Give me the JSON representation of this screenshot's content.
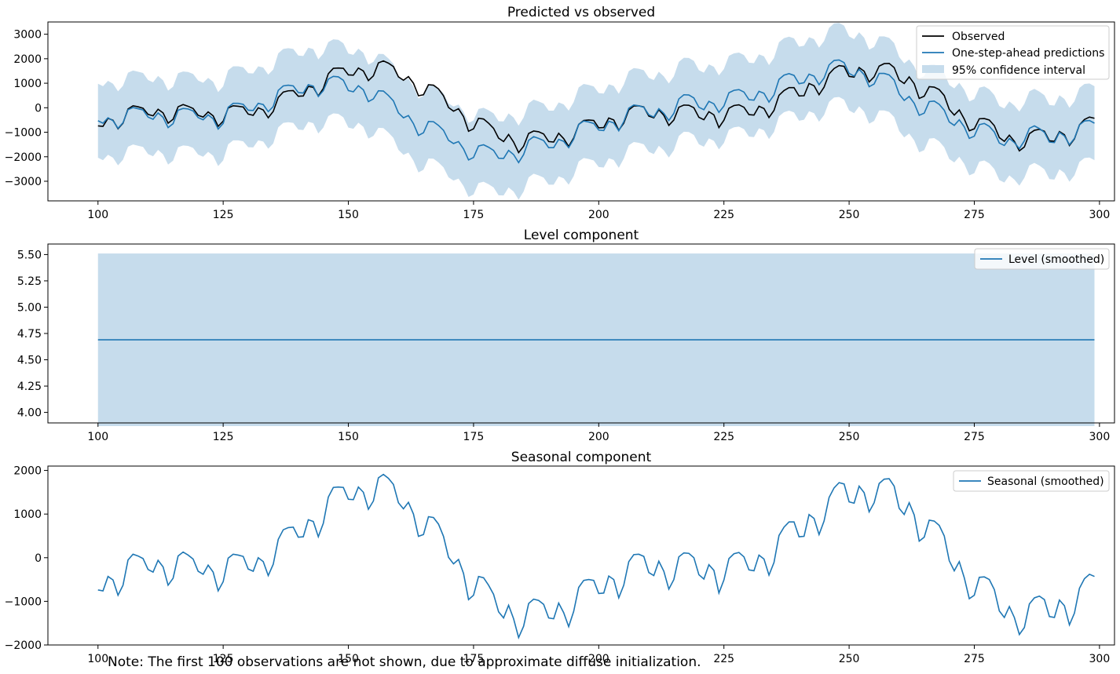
{
  "colors": {
    "series_blue": "#1f77b4",
    "observed": "#000000",
    "ci_fill": "#c6dcec"
  },
  "note": "Note: The first 100 observations are not shown, due to approximate diffuse initialization.",
  "chart_data": [
    {
      "type": "line",
      "title": "Predicted vs observed",
      "xlim": [
        90,
        303
      ],
      "ylim": [
        -3800,
        3500
      ],
      "xticks": [
        100,
        125,
        150,
        175,
        200,
        225,
        250,
        275,
        300
      ],
      "yticks": [
        -3000,
        -2000,
        -1000,
        0,
        1000,
        2000,
        3000
      ],
      "legend_position": "top-right",
      "x_start": 100,
      "x_end": 299,
      "legend": {
        "observed": "Observed",
        "predicted": "One-step-ahead predictions",
        "ci": "95% confidence interval"
      },
      "observed_values": [
        -740,
        -760,
        -430,
        -510,
        -860,
        -630,
        -50,
        80,
        40,
        -20,
        -270,
        -330,
        -60,
        -210,
        -630,
        -470,
        40,
        130,
        60,
        -30,
        -310,
        -380,
        -170,
        -330,
        -760,
        -550,
        -10,
        80,
        60,
        30,
        -260,
        -310,
        0,
        -90,
        -410,
        -150,
        420,
        640,
        690,
        700,
        470,
        480,
        870,
        830,
        480,
        790,
        1390,
        1610,
        1620,
        1610,
        1340,
        1330,
        1620,
        1500,
        1110,
        1300,
        1830,
        1910,
        1820,
        1680,
        1260,
        1120,
        1270,
        1000,
        490,
        530,
        940,
        920,
        770,
        490,
        10,
        -140,
        -40,
        -360,
        -960,
        -860,
        -430,
        -460,
        -630,
        -840,
        -1240,
        -1380,
        -1090,
        -1400,
        -1830,
        -1570,
        -1050,
        -950,
        -980,
        -1070,
        -1380,
        -1400,
        -1040,
        -1260,
        -1580,
        -1230,
        -680,
        -520,
        -500,
        -520,
        -820,
        -810,
        -420,
        -500,
        -920,
        -630,
        -90,
        70,
        80,
        30,
        -340,
        -410,
        -80,
        -310,
        -720,
        -500,
        20,
        110,
        100,
        0,
        -390,
        -490,
        -160,
        -290,
        -810,
        -510,
        -20,
        90,
        120,
        20,
        -280,
        -300,
        60,
        -30,
        -400,
        -110,
        510,
        700,
        820,
        820,
        480,
        490,
        990,
        900,
        530,
        840,
        1380,
        1600,
        1720,
        1690,
        1280,
        1250,
        1640,
        1490,
        1050,
        1260,
        1700,
        1800,
        1810,
        1640,
        1130,
        990,
        1260,
        980,
        380,
        470,
        860,
        840,
        740,
        500,
        -70,
        -300,
        -90,
        -460,
        -940,
        -860,
        -450,
        -440,
        -500,
        -730,
        -1220,
        -1370,
        -1120,
        -1370,
        -1760,
        -1600,
        -1060,
        -920,
        -880,
        -960,
        -1350,
        -1370,
        -970,
        -1100,
        -1540,
        -1270,
        -700,
        -480,
        -380,
        -430
      ],
      "predicted_values": [
        -530,
        -630,
        -410,
        -530,
        -840,
        -610,
        -80,
        10,
        -40,
        -90,
        -380,
        -470,
        -210,
        -390,
        -810,
        -650,
        -100,
        -30,
        -50,
        -130,
        -400,
        -490,
        -290,
        -450,
        -870,
        -640,
        20,
        180,
        180,
        140,
        -100,
        -110,
        180,
        130,
        -160,
        50,
        710,
        890,
        920,
        890,
        620,
        600,
        940,
        880,
        460,
        700,
        1170,
        1280,
        1260,
        1120,
        700,
        650,
        900,
        730,
        250,
        360,
        690,
        680,
        500,
        280,
        -210,
        -410,
        -320,
        -650,
        -1130,
        -1020,
        -560,
        -570,
        -720,
        -920,
        -1330,
        -1460,
        -1380,
        -1680,
        -2130,
        -2030,
        -1560,
        -1510,
        -1610,
        -1740,
        -2060,
        -2070,
        -1740,
        -1910,
        -2240,
        -1910,
        -1330,
        -1180,
        -1250,
        -1340,
        -1630,
        -1630,
        -1290,
        -1370,
        -1630,
        -1280,
        -680,
        -540,
        -580,
        -640,
        -910,
        -930,
        -550,
        -620,
        -940,
        -570,
        -20,
        110,
        80,
        20,
        -290,
        -380,
        -40,
        -230,
        -520,
        -230,
        360,
        530,
        520,
        400,
        20,
        -80,
        260,
        160,
        -190,
        70,
        610,
        710,
        740,
        640,
        330,
        310,
        670,
        590,
        230,
        520,
        1160,
        1330,
        1390,
        1320,
        980,
        1020,
        1370,
        1290,
        940,
        1210,
        1750,
        1930,
        1950,
        1840,
        1400,
        1290,
        1570,
        1350,
        860,
        970,
        1400,
        1400,
        1340,
        1130,
        560,
        300,
        460,
        180,
        -310,
        -220,
        250,
        270,
        140,
        -100,
        -580,
        -720,
        -490,
        -780,
        -1250,
        -1160,
        -690,
        -640,
        -760,
        -990,
        -1440,
        -1540,
        -1250,
        -1420,
        -1670,
        -1350,
        -840,
        -740,
        -850,
        -1000,
        -1400,
        -1420,
        -1000,
        -1150,
        -1510,
        -1250,
        -700,
        -540,
        -520,
        -630
      ],
      "ci_halfwidth": 1510
    },
    {
      "type": "line",
      "title": "Level component",
      "xlim": [
        90,
        303
      ],
      "ylim": [
        3.9,
        5.6
      ],
      "xticks": [
        100,
        125,
        150,
        175,
        200,
        225,
        250,
        275,
        300
      ],
      "yticks": [
        4.0,
        4.25,
        4.5,
        4.75,
        5.0,
        5.25,
        5.5
      ],
      "ytick_labels": [
        "4.00",
        "4.25",
        "4.50",
        "4.75",
        "5.00",
        "5.25",
        "5.50"
      ],
      "legend_position": "top-right",
      "x_start": 100,
      "x_end": 299,
      "legend": {
        "level": "Level (smoothed)"
      },
      "level_value": 4.69,
      "ci": [
        3.87,
        5.51
      ]
    },
    {
      "type": "line",
      "title": "Seasonal component",
      "xlim": [
        90,
        303
      ],
      "ylim": [
        -2000,
        2100
      ],
      "xticks": [
        100,
        125,
        150,
        175,
        200,
        225,
        250,
        275,
        300
      ],
      "yticks": [
        -2000,
        -1000,
        0,
        1000,
        2000
      ],
      "legend_position": "top-right",
      "x_start": 100,
      "x_end": 299,
      "legend": {
        "seasonal": "Seasonal (smoothed)"
      },
      "seasonal_values": "same as observed minus level"
    }
  ]
}
